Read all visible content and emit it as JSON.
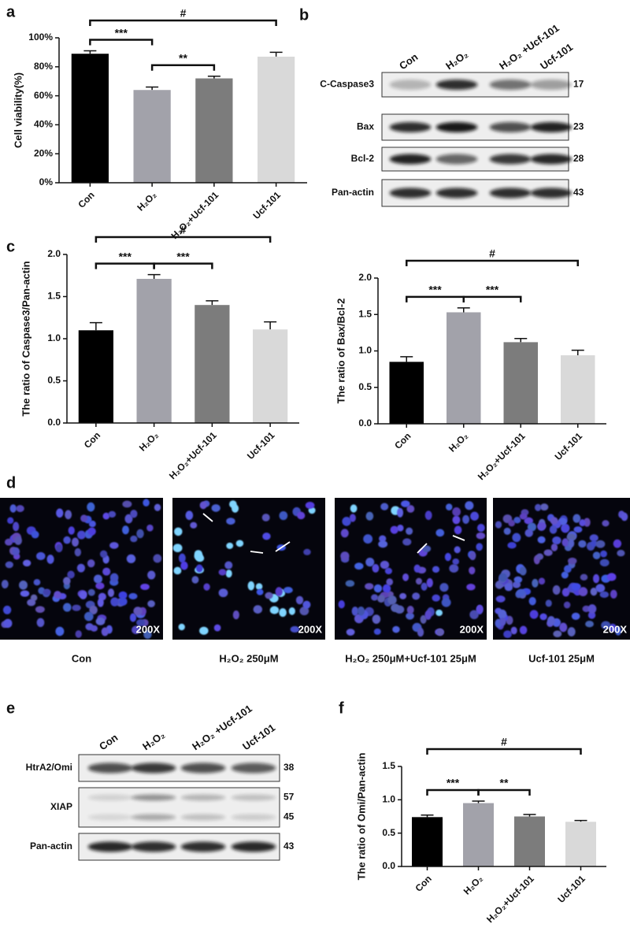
{
  "chart_data": [
    {
      "type": "bar",
      "panel": "a",
      "y_label": "Cell viability(%)",
      "categories": [
        "Con",
        "H₂O₂",
        "H₂O₂+Ucf-101",
        "Ucf-101"
      ],
      "values": [
        89,
        64,
        72,
        87
      ],
      "errors": [
        2,
        2,
        1.5,
        3
      ],
      "colors": [
        "#000000",
        "#a2a2aa",
        "#7c7c7c",
        "#d9d9d9"
      ],
      "ylim": [
        0,
        100
      ],
      "yticks": [
        {
          "value": 0,
          "label": "0%"
        },
        {
          "value": 20,
          "label": "20%"
        },
        {
          "value": 40,
          "label": "40%"
        },
        {
          "value": 60,
          "label": "60%"
        },
        {
          "value": 80,
          "label": "80%"
        },
        {
          "value": 100,
          "label": "100%"
        }
      ],
      "brackets": [
        {
          "from": 0,
          "to": 1,
          "label": "***"
        },
        {
          "from": 1,
          "to": 2,
          "label": "**"
        },
        {
          "from": 0,
          "to": 3,
          "label": "#"
        }
      ]
    },
    {
      "type": "bar",
      "panel": "c",
      "y_label": "The ratio of Caspase3/Pan-actin",
      "categories": [
        "Con",
        "H₂O₂",
        "H₂O₂+Ucf-101",
        "Ucf-101"
      ],
      "values": [
        1.1,
        1.71,
        1.4,
        1.11
      ],
      "errors": [
        0.09,
        0.05,
        0.05,
        0.09
      ],
      "colors": [
        "#000000",
        "#a2a2aa",
        "#7c7c7c",
        "#d9d9d9"
      ],
      "ylim": [
        0,
        2
      ],
      "yticks": [
        {
          "value": 0,
          "label": "0.0"
        },
        0.5,
        {
          "value": 1,
          "label": "1.0"
        },
        1.5,
        {
          "value": 2,
          "label": "2.0"
        }
      ],
      "brackets": [
        {
          "from": 0,
          "to": 1,
          "label": "***"
        },
        {
          "from": 1,
          "to": 2,
          "label": "***"
        },
        {
          "from": 0,
          "to": 3,
          "label": "#"
        }
      ]
    },
    {
      "type": "bar",
      "y_label": "The ratio of Bax/Bcl-2",
      "categories": [
        "Con",
        "H₂O₂",
        "H₂O₂+Ucf-101",
        "Ucf-101"
      ],
      "values": [
        0.85,
        1.53,
        1.12,
        0.94
      ],
      "errors": [
        0.07,
        0.06,
        0.05,
        0.07
      ],
      "colors": [
        "#000000",
        "#a2a2aa",
        "#7c7c7c",
        "#d9d9d9"
      ],
      "ylim": [
        0,
        2
      ],
      "yticks": [
        {
          "value": 0,
          "label": "0.0"
        },
        0.5,
        {
          "value": 1,
          "label": "1.0"
        },
        1.5,
        {
          "value": 2,
          "label": "2.0"
        }
      ],
      "brackets": [
        {
          "from": 0,
          "to": 1,
          "label": "***"
        },
        {
          "from": 1,
          "to": 2,
          "label": "***"
        },
        {
          "from": 0,
          "to": 3,
          "label": "#"
        }
      ]
    },
    {
      "type": "bar",
      "panel": "f",
      "y_label": "The ratio of Omi/Pan-actin",
      "categories": [
        "Con",
        "H₂O₂",
        "H₂O₂+Ucf-101",
        "Ucf-101"
      ],
      "values": [
        0.74,
        0.95,
        0.75,
        0.67
      ],
      "errors": [
        0.03,
        0.03,
        0.03,
        0.02
      ],
      "colors": [
        "#000000",
        "#a2a2aa",
        "#7c7c7c",
        "#d9d9d9"
      ],
      "ylim": [
        0,
        1.5
      ],
      "yticks": [
        {
          "value": 0,
          "label": "0.0"
        },
        0.5,
        {
          "value": 1,
          "label": "1.0"
        },
        1.5
      ],
      "brackets": [
        {
          "from": 0,
          "to": 1,
          "label": "***"
        },
        {
          "from": 1,
          "to": 2,
          "label": "**"
        },
        {
          "from": 0,
          "to": 3,
          "label": "#"
        }
      ]
    }
  ],
  "blots": [
    {
      "panel": "b",
      "columns": [
        "Con",
        "H₂O₂",
        "H₂O₂ +Ucf-101",
        "Ucf-101"
      ],
      "rows": [
        {
          "label": "C-Caspase3",
          "kda": [
            17
          ]
        },
        {
          "label": "Bax",
          "kda": [
            23
          ]
        },
        {
          "label": "Bcl-2",
          "kda": [
            28
          ]
        },
        {
          "label": "Pan-actin",
          "kda": [
            43
          ]
        }
      ]
    },
    {
      "panel": "e",
      "columns": [
        "Con",
        "H₂O₂",
        "H₂O₂ +Ucf-101",
        "Ucf-101"
      ],
      "rows": [
        {
          "label": "HtrA2/Omi",
          "kda": [
            38
          ]
        },
        {
          "label": "XIAP",
          "kda": [
            57,
            45
          ]
        },
        {
          "label": "Pan-actin",
          "kda": [
            43
          ]
        }
      ]
    }
  ],
  "micrographs": {
    "panel": "d",
    "images": [
      {
        "caption": "Con",
        "magnification": "200X"
      },
      {
        "caption": "H₂O₂ 250μM",
        "magnification": "200X"
      },
      {
        "caption": "H₂O₂ 250μM+Ucf-101 25μM",
        "magnification": "200X"
      },
      {
        "caption": "Ucf-101 25μM",
        "magnification": "200X"
      }
    ]
  }
}
